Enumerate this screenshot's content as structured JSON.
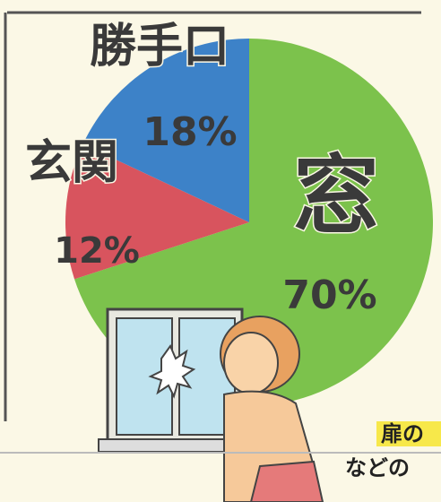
{
  "chart_data": {
    "type": "pie",
    "categories": [
      "窓",
      "玄関",
      "勝手口"
    ],
    "values": [
      70,
      12,
      18
    ],
    "value_labels": [
      "70%",
      "12%",
      "18%"
    ],
    "colors": [
      "#7cc24c",
      "#d8545e",
      "#3d82c8"
    ]
  },
  "annotations": [
    "扉の",
    "などの"
  ]
}
